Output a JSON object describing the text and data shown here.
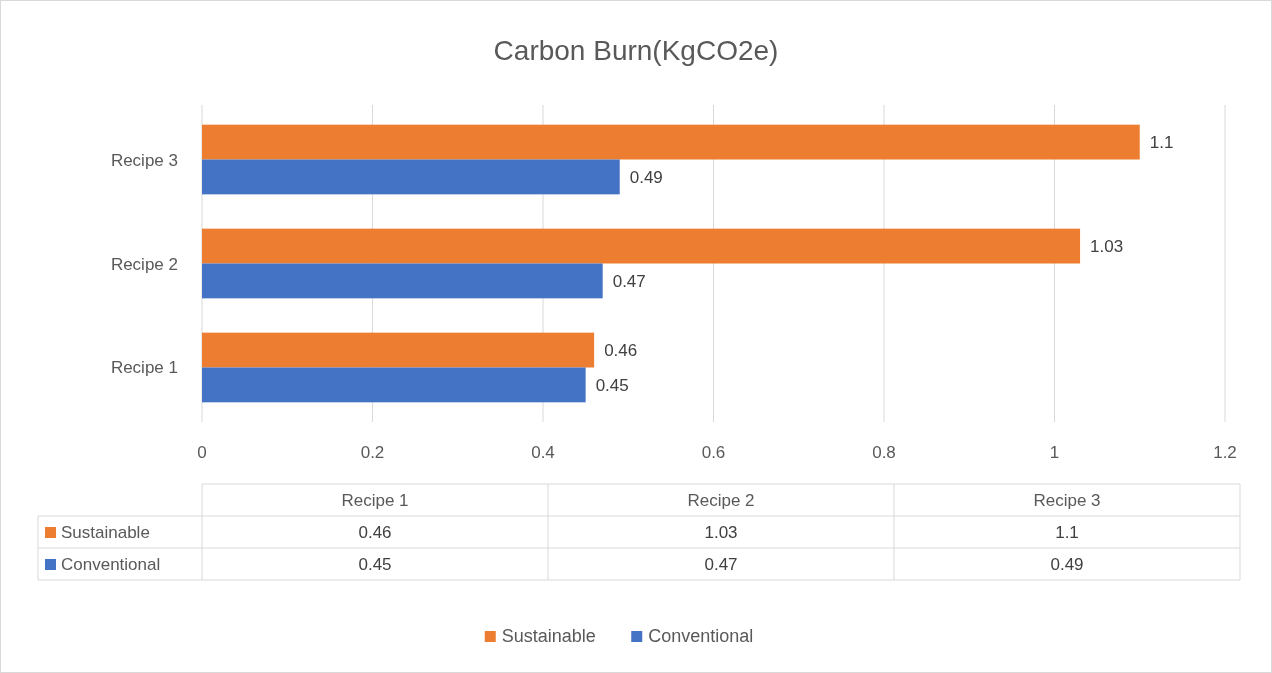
{
  "chart_data": {
    "type": "bar",
    "orientation": "horizontal",
    "title": "Carbon Burn(KgCO2e)",
    "categories": [
      "Recipe 3",
      "Recipe 2",
      "Recipe 1"
    ],
    "series": [
      {
        "name": "Sustainable",
        "color": "#ed7d31",
        "values": [
          1.1,
          1.03,
          0.46
        ],
        "value_labels": [
          "1.1",
          "1.03",
          "0.46"
        ]
      },
      {
        "name": "Conventional",
        "color": "#4472c4",
        "values": [
          0.49,
          0.47,
          0.45
        ],
        "value_labels": [
          "0.49",
          "0.47",
          "0.45"
        ]
      }
    ],
    "xlim": [
      0,
      1.2
    ],
    "xticks": [
      0,
      0.2,
      0.4,
      0.6,
      0.8,
      1,
      1.2
    ],
    "grid": "x",
    "legend": "bottom"
  }
}
